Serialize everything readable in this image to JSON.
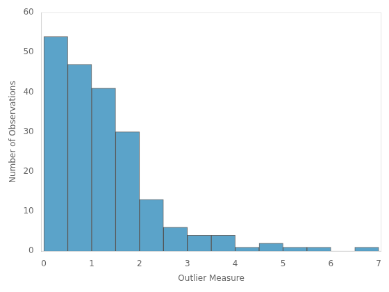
{
  "chart_data": {
    "type": "histogram",
    "bins": [
      0,
      0.5,
      1.0,
      1.5,
      2.0,
      2.5,
      3.0,
      3.5,
      4.0,
      4.5,
      5.0,
      5.5,
      6.0,
      6.5,
      7.0
    ],
    "values": [
      54,
      47,
      41,
      30,
      13,
      6,
      4,
      4,
      1,
      2,
      1,
      1,
      0,
      1
    ],
    "color": "#5ba3c9",
    "xlabel": "Outlier Measure",
    "ylabel": "Number of Observations",
    "xlim": [
      -0.05,
      7.05
    ],
    "ylim": [
      0,
      60
    ],
    "xticks": [
      0,
      1,
      2,
      3,
      4,
      5,
      6,
      7
    ],
    "yticks": [
      0,
      10,
      20,
      30,
      40,
      50,
      60
    ],
    "grid": false
  }
}
